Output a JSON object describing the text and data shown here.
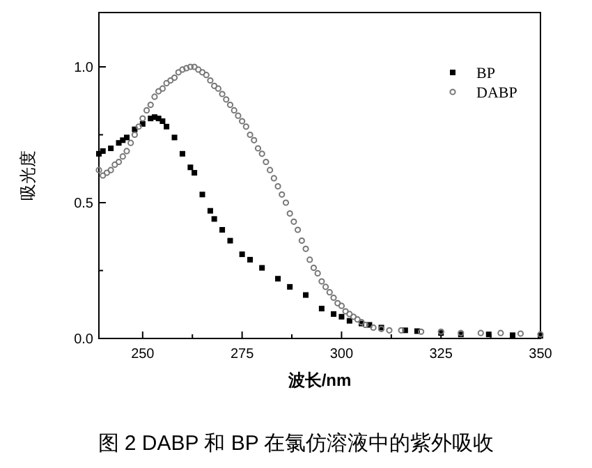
{
  "chart_data": {
    "type": "scatter",
    "xlabel": "波长/nm",
    "ylabel": "吸光度",
    "annotations": [
      "图 2 DABP 和 BP 在氯仿溶液中的紫外吸收"
    ],
    "xlim": [
      239,
      350
    ],
    "ylim": [
      0,
      1.2
    ],
    "xticks": [
      250,
      {
        "value": 262.5,
        "label": null
      },
      275,
      {
        "value": 287.5,
        "label": null
      },
      300,
      {
        "value": 312.5,
        "label": null
      },
      325,
      {
        "value": 337.5,
        "label": null
      },
      350
    ],
    "yticks": [
      {
        "value": 0,
        "label": "0.0"
      },
      {
        "value": 0.25,
        "label": null
      },
      0.5,
      {
        "value": 0.75,
        "label": null
      },
      {
        "value": 1,
        "label": "1.0"
      }
    ],
    "grid": false,
    "legend": "top right",
    "series": [
      {
        "name": "BP",
        "color": "#000000",
        "marker": "square",
        "x": [
          239,
          240,
          242,
          244,
          245,
          246,
          248,
          250,
          252,
          253,
          254,
          255,
          256,
          258,
          260,
          262,
          263,
          265,
          267,
          268,
          270,
          272,
          275,
          277,
          280,
          284,
          287,
          291,
          295,
          298,
          300,
          302,
          305,
          307,
          310,
          316,
          319,
          325,
          330,
          337,
          343,
          350
        ],
        "values": [
          0.68,
          0.69,
          0.7,
          0.72,
          0.73,
          0.74,
          0.77,
          0.79,
          0.81,
          0.815,
          0.81,
          0.8,
          0.78,
          0.74,
          0.68,
          0.63,
          0.61,
          0.53,
          0.47,
          0.44,
          0.4,
          0.36,
          0.31,
          0.29,
          0.26,
          0.22,
          0.19,
          0.16,
          0.11,
          0.09,
          0.08,
          0.065,
          0.055,
          0.05,
          0.04,
          0.03,
          0.027,
          0.02,
          0.015,
          0.015,
          0.012,
          0.01
        ]
      },
      {
        "name": "DABP",
        "color": "#777777",
        "marker": "circle",
        "x": [
          239,
          240,
          241,
          242,
          243,
          244,
          245,
          246,
          247,
          248,
          249,
          250,
          251,
          252,
          253,
          254,
          255,
          256,
          257,
          258,
          259,
          260,
          261,
          262,
          263,
          264,
          265,
          266,
          267,
          268,
          269,
          270,
          271,
          272,
          273,
          274,
          275,
          276,
          277,
          278,
          279,
          280,
          281,
          282,
          283,
          284,
          285,
          286,
          287,
          288,
          289,
          290,
          291,
          292,
          293,
          294,
          295,
          296,
          297,
          298,
          299,
          300,
          301,
          302,
          303,
          304,
          305,
          306,
          308,
          310,
          312,
          315,
          320,
          325,
          330,
          335,
          340,
          345,
          350
        ],
        "values": [
          0.62,
          0.6,
          0.61,
          0.62,
          0.64,
          0.65,
          0.67,
          0.69,
          0.72,
          0.75,
          0.78,
          0.81,
          0.84,
          0.86,
          0.89,
          0.91,
          0.92,
          0.94,
          0.95,
          0.96,
          0.98,
          0.99,
          0.995,
          1.0,
          1.0,
          0.99,
          0.98,
          0.97,
          0.95,
          0.93,
          0.92,
          0.9,
          0.88,
          0.86,
          0.84,
          0.82,
          0.8,
          0.78,
          0.75,
          0.73,
          0.7,
          0.68,
          0.65,
          0.62,
          0.59,
          0.56,
          0.53,
          0.5,
          0.46,
          0.43,
          0.4,
          0.36,
          0.33,
          0.29,
          0.26,
          0.24,
          0.21,
          0.19,
          0.17,
          0.15,
          0.13,
          0.12,
          0.1,
          0.09,
          0.08,
          0.07,
          0.06,
          0.05,
          0.04,
          0.035,
          0.03,
          0.03,
          0.025,
          0.025,
          0.02,
          0.02,
          0.02,
          0.018,
          0.015
        ]
      }
    ]
  }
}
